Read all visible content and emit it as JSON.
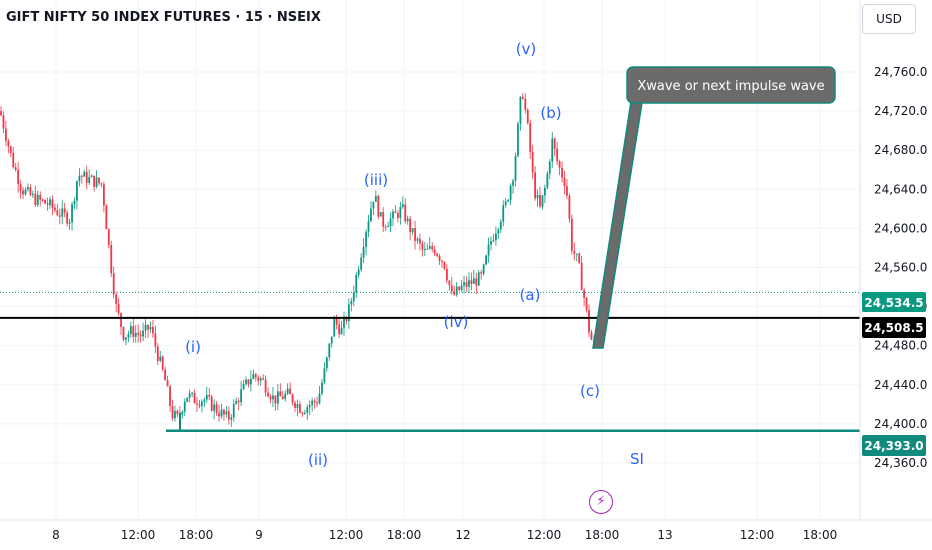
{
  "header": {
    "symbol_title": "GIFT NIFTY 50 INDEX FUTURES · 15 · NSEIX",
    "currency_label": "USD"
  },
  "icons": {
    "event_marker": "lightning-bolt-icon"
  },
  "colors": {
    "up": "#089981",
    "down": "#f23645",
    "wave_label": "#2962ff",
    "support": "#0f8a7c",
    "price_line": "#000000"
  },
  "chart_data": {
    "type": "candlestick",
    "title": "GIFT NIFTY 50 INDEX FUTURES · 15 · NSEIX",
    "ylim": [
      24330,
      24800
    ],
    "y_ticks": [
      24360,
      24400,
      24440,
      24480,
      24520,
      24560,
      24600,
      24640,
      24680,
      24720,
      24760
    ],
    "y_tick_labels": [
      "24,360.0",
      "24,400.0",
      "24,440.0",
      "24,480.0",
      "24,520.0",
      "24,560.0",
      "24,600.0",
      "24,640.0",
      "24,680.0",
      "24,720.0",
      "24,760.0"
    ],
    "x_ticks": [
      "8",
      "12:00",
      "18:00",
      "9",
      "12:00",
      "18:00",
      "12",
      "12:00",
      "18:00",
      "13",
      "12:00",
      "18:00"
    ],
    "price_path": [
      [
        0,
        24720
      ],
      [
        12,
        24670
      ],
      [
        22,
        24640
      ],
      [
        35,
        24630
      ],
      [
        48,
        24625
      ],
      [
        60,
        24615
      ],
      [
        70,
        24610
      ],
      [
        78,
        24655
      ],
      [
        90,
        24650
      ],
      [
        102,
        24645
      ],
      [
        110,
        24570
      ],
      [
        116,
        24520
      ],
      [
        124,
        24490
      ],
      [
        132,
        24495
      ],
      [
        142,
        24490
      ],
      [
        150,
        24500
      ],
      [
        158,
        24470
      ],
      [
        165,
        24445
      ],
      [
        172,
        24410
      ],
      [
        178,
        24405
      ],
      [
        186,
        24430
      ],
      [
        194,
        24425
      ],
      [
        206,
        24425
      ],
      [
        216,
        24415
      ],
      [
        228,
        24405
      ],
      [
        240,
        24430
      ],
      [
        252,
        24450
      ],
      [
        262,
        24445
      ],
      [
        274,
        24425
      ],
      [
        288,
        24430
      ],
      [
        302,
        24415
      ],
      [
        318,
        24425
      ],
      [
        326,
        24460
      ],
      [
        334,
        24505
      ],
      [
        342,
        24495
      ],
      [
        350,
        24520
      ],
      [
        358,
        24560
      ],
      [
        366,
        24600
      ],
      [
        374,
        24635
      ],
      [
        382,
        24605
      ],
      [
        392,
        24610
      ],
      [
        402,
        24620
      ],
      [
        412,
        24595
      ],
      [
        424,
        24575
      ],
      [
        434,
        24580
      ],
      [
        444,
        24565
      ],
      [
        452,
        24530
      ],
      [
        462,
        24540
      ],
      [
        472,
        24545
      ],
      [
        482,
        24550
      ],
      [
        490,
        24585
      ],
      [
        498,
        24605
      ],
      [
        506,
        24625
      ],
      [
        514,
        24660
      ],
      [
        522,
        24745
      ],
      [
        528,
        24700
      ],
      [
        534,
        24640
      ],
      [
        540,
        24620
      ],
      [
        546,
        24645
      ],
      [
        552,
        24690
      ],
      [
        558,
        24665
      ],
      [
        566,
        24645
      ],
      [
        572,
        24580
      ],
      [
        578,
        24565
      ],
      [
        584,
        24530
      ],
      [
        590,
        24490
      ],
      [
        594,
        24480
      ],
      [
        600,
        24520
      ]
    ],
    "horizontal_lines": [
      {
        "price": 24508.5,
        "label": "24,508.5"
      },
      {
        "price": 24393.0,
        "label": "24,393.0"
      },
      {
        "price": 24534.5,
        "label": "24,534.5"
      }
    ],
    "wave_labels": [
      "(i)",
      "(ii)",
      "(iii)",
      "(iv)",
      "(v)",
      "(a)",
      "(b)",
      "(c)",
      "SI"
    ],
    "annotation": "Xwave or next impulse wave"
  }
}
